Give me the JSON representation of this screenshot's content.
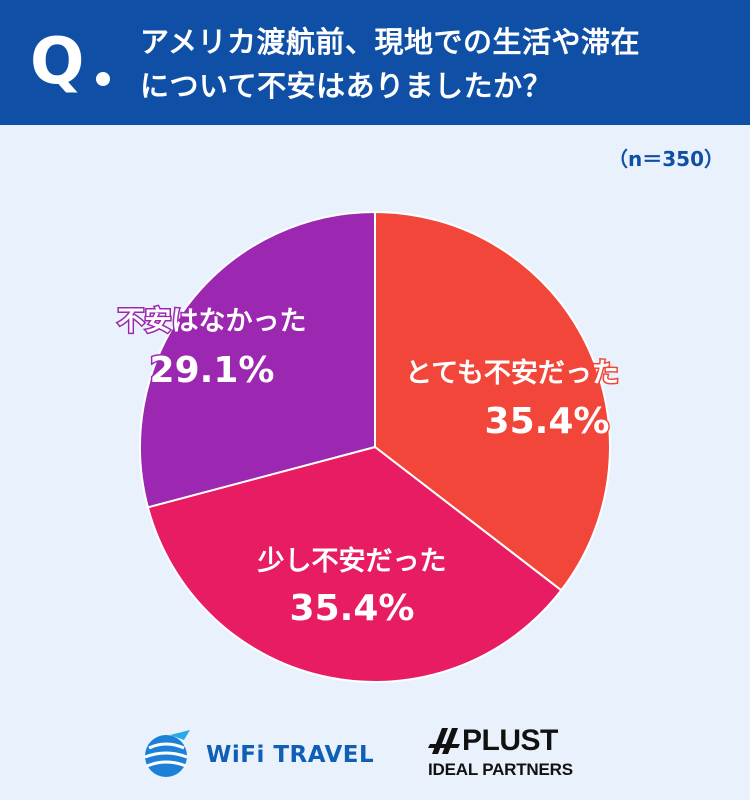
{
  "header": {
    "q_label": "Q.",
    "question_line1": "アメリカ渡航前、現地での生活や滞在",
    "question_line2": "について不安はありましたか？"
  },
  "sample_size": "（n＝350）",
  "colors": {
    "header_bg": "#0f50a6",
    "background": "#e9f2fc",
    "very_anxious": "#f2463a",
    "slightly_anxious": "#e81c63",
    "not_anxious": "#9c27b0"
  },
  "chart_data": {
    "type": "pie",
    "title": "",
    "slices": [
      {
        "label": "とても不安だった",
        "value": 35.4,
        "value_label": "35.4%",
        "color": "#f2463a"
      },
      {
        "label": "少し不安だった",
        "value": 35.4,
        "value_label": "35.4%",
        "color": "#e81c63"
      },
      {
        "label": "不安はなかった",
        "value": 29.1,
        "value_label": "29.1%",
        "color": "#9c27b0"
      }
    ]
  },
  "footer": {
    "logo1_text": "WiFi TRAVEL",
    "logo2_name": "PLUST",
    "logo2_sub": "IDEAL PARTNERS"
  }
}
